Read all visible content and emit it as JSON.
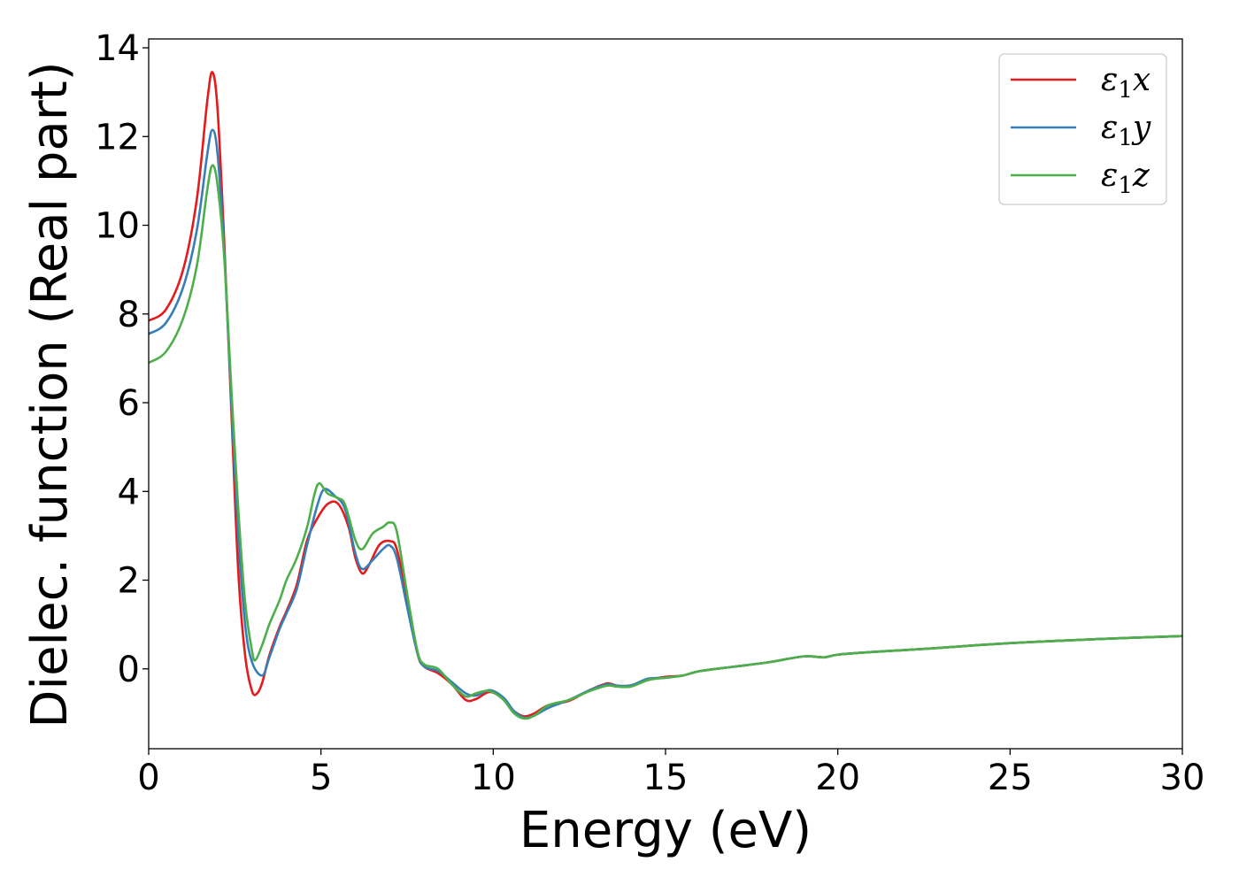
{
  "chart_data": {
    "type": "line",
    "xlabel": "Energy (eV)",
    "ylabel": "Dielec. function (Real part)",
    "xlim": [
      0,
      30
    ],
    "ylim": [
      -1.8,
      14.2
    ],
    "xticks": [
      0,
      5,
      10,
      15,
      20,
      25,
      30
    ],
    "yticks": [
      0,
      2,
      4,
      6,
      8,
      10,
      12,
      14
    ],
    "grid": false,
    "legend_position": "top-right",
    "series": [
      {
        "name": "ε1x",
        "legend": {
          "base": "ε",
          "sub": "1",
          "comp": "x"
        },
        "color": "#e41a1c",
        "points": [
          [
            0,
            7.85
          ],
          [
            0.5,
            8.1
          ],
          [
            1,
            9.0
          ],
          [
            1.4,
            10.6
          ],
          [
            1.7,
            12.8
          ],
          [
            1.85,
            13.45
          ],
          [
            2.0,
            12.6
          ],
          [
            2.2,
            9.5
          ],
          [
            2.4,
            5.8
          ],
          [
            2.6,
            2.2
          ],
          [
            2.8,
            0.3
          ],
          [
            3.0,
            -0.5
          ],
          [
            3.15,
            -0.55
          ],
          [
            3.3,
            -0.3
          ],
          [
            3.5,
            0.3
          ],
          [
            3.8,
            0.95
          ],
          [
            4.0,
            1.3
          ],
          [
            4.3,
            1.9
          ],
          [
            4.6,
            2.9
          ],
          [
            4.9,
            3.4
          ],
          [
            5.2,
            3.72
          ],
          [
            5.5,
            3.72
          ],
          [
            5.8,
            3.2
          ],
          [
            6.0,
            2.5
          ],
          [
            6.2,
            2.15
          ],
          [
            6.4,
            2.35
          ],
          [
            6.7,
            2.8
          ],
          [
            7.0,
            2.88
          ],
          [
            7.2,
            2.7
          ],
          [
            7.5,
            1.6
          ],
          [
            7.8,
            0.35
          ],
          [
            8.0,
            0.05
          ],
          [
            8.4,
            -0.1
          ],
          [
            8.8,
            -0.35
          ],
          [
            9.2,
            -0.7
          ],
          [
            9.5,
            -0.68
          ],
          [
            9.9,
            -0.52
          ],
          [
            10.3,
            -0.68
          ],
          [
            10.6,
            -0.95
          ],
          [
            10.9,
            -1.07
          ],
          [
            11.2,
            -1.0
          ],
          [
            11.6,
            -0.82
          ],
          [
            12.2,
            -0.72
          ],
          [
            12.8,
            -0.48
          ],
          [
            13.3,
            -0.33
          ],
          [
            13.6,
            -0.38
          ],
          [
            14.0,
            -0.38
          ],
          [
            14.5,
            -0.25
          ],
          [
            15.0,
            -0.18
          ],
          [
            15.5,
            -0.15
          ],
          [
            16.0,
            -0.05
          ],
          [
            17.0,
            0.05
          ],
          [
            18.0,
            0.15
          ],
          [
            19.0,
            0.28
          ],
          [
            19.6,
            0.26
          ],
          [
            20.0,
            0.32
          ],
          [
            21.0,
            0.38
          ],
          [
            22.5,
            0.45
          ],
          [
            25.0,
            0.58
          ],
          [
            27.5,
            0.67
          ],
          [
            30.0,
            0.74
          ]
        ]
      },
      {
        "name": "ε1y",
        "legend": {
          "base": "ε",
          "sub": "1",
          "comp": "y"
        },
        "color": "#377eb8",
        "points": [
          [
            0,
            7.55
          ],
          [
            0.5,
            7.8
          ],
          [
            1,
            8.6
          ],
          [
            1.4,
            9.9
          ],
          [
            1.7,
            11.6
          ],
          [
            1.85,
            12.15
          ],
          [
            2.0,
            11.6
          ],
          [
            2.2,
            9.3
          ],
          [
            2.4,
            6.0
          ],
          [
            2.6,
            3.0
          ],
          [
            2.8,
            1.0
          ],
          [
            3.0,
            0.15
          ],
          [
            3.3,
            -0.15
          ],
          [
            3.5,
            0.25
          ],
          [
            3.8,
            0.9
          ],
          [
            4.0,
            1.25
          ],
          [
            4.3,
            1.8
          ],
          [
            4.6,
            2.8
          ],
          [
            4.9,
            3.7
          ],
          [
            5.1,
            4.05
          ],
          [
            5.4,
            3.9
          ],
          [
            5.7,
            3.6
          ],
          [
            6.0,
            2.6
          ],
          [
            6.2,
            2.25
          ],
          [
            6.5,
            2.45
          ],
          [
            6.8,
            2.7
          ],
          [
            7.0,
            2.78
          ],
          [
            7.2,
            2.5
          ],
          [
            7.5,
            1.4
          ],
          [
            7.8,
            0.35
          ],
          [
            8.0,
            0.05
          ],
          [
            8.4,
            -0.05
          ],
          [
            8.8,
            -0.3
          ],
          [
            9.2,
            -0.55
          ],
          [
            9.5,
            -0.6
          ],
          [
            9.9,
            -0.48
          ],
          [
            10.3,
            -0.65
          ],
          [
            10.6,
            -0.95
          ],
          [
            10.9,
            -1.1
          ],
          [
            11.2,
            -1.05
          ],
          [
            11.6,
            -0.88
          ],
          [
            12.2,
            -0.7
          ],
          [
            12.8,
            -0.48
          ],
          [
            13.3,
            -0.35
          ],
          [
            13.6,
            -0.38
          ],
          [
            14.0,
            -0.37
          ],
          [
            14.5,
            -0.22
          ],
          [
            15.0,
            -0.2
          ],
          [
            15.5,
            -0.15
          ],
          [
            16.0,
            -0.05
          ],
          [
            17.0,
            0.05
          ],
          [
            18.0,
            0.15
          ],
          [
            19.0,
            0.28
          ],
          [
            19.6,
            0.26
          ],
          [
            20.0,
            0.32
          ],
          [
            21.0,
            0.38
          ],
          [
            22.5,
            0.45
          ],
          [
            25.0,
            0.58
          ],
          [
            27.5,
            0.67
          ],
          [
            30.0,
            0.74
          ]
        ]
      },
      {
        "name": "ε1z",
        "legend": {
          "base": "ε",
          "sub": "1",
          "comp": "z"
        },
        "color": "#4daf4a",
        "points": [
          [
            0,
            6.9
          ],
          [
            0.5,
            7.15
          ],
          [
            1,
            7.9
          ],
          [
            1.4,
            9.1
          ],
          [
            1.7,
            10.8
          ],
          [
            1.85,
            11.35
          ],
          [
            2.0,
            10.9
          ],
          [
            2.2,
            9.2
          ],
          [
            2.4,
            6.3
          ],
          [
            2.6,
            3.6
          ],
          [
            2.8,
            1.5
          ],
          [
            3.0,
            0.4
          ],
          [
            3.1,
            0.2
          ],
          [
            3.3,
            0.55
          ],
          [
            3.5,
            1.0
          ],
          [
            3.8,
            1.55
          ],
          [
            4.0,
            2.0
          ],
          [
            4.3,
            2.5
          ],
          [
            4.6,
            3.2
          ],
          [
            4.8,
            3.9
          ],
          [
            4.95,
            4.18
          ],
          [
            5.2,
            3.95
          ],
          [
            5.5,
            3.85
          ],
          [
            5.7,
            3.7
          ],
          [
            6.0,
            2.9
          ],
          [
            6.2,
            2.7
          ],
          [
            6.5,
            3.05
          ],
          [
            6.8,
            3.2
          ],
          [
            7.0,
            3.3
          ],
          [
            7.2,
            3.1
          ],
          [
            7.5,
            1.7
          ],
          [
            7.8,
            0.4
          ],
          [
            8.0,
            0.1
          ],
          [
            8.4,
            0.0
          ],
          [
            8.8,
            -0.35
          ],
          [
            9.2,
            -0.62
          ],
          [
            9.5,
            -0.55
          ],
          [
            9.9,
            -0.5
          ],
          [
            10.3,
            -0.7
          ],
          [
            10.6,
            -1.0
          ],
          [
            10.9,
            -1.12
          ],
          [
            11.2,
            -1.05
          ],
          [
            11.6,
            -0.82
          ],
          [
            12.2,
            -0.7
          ],
          [
            12.8,
            -0.5
          ],
          [
            13.3,
            -0.38
          ],
          [
            13.6,
            -0.4
          ],
          [
            14.0,
            -0.4
          ],
          [
            14.5,
            -0.25
          ],
          [
            15.0,
            -0.2
          ],
          [
            15.5,
            -0.15
          ],
          [
            16.0,
            -0.05
          ],
          [
            17.0,
            0.05
          ],
          [
            18.0,
            0.15
          ],
          [
            19.0,
            0.28
          ],
          [
            19.6,
            0.26
          ],
          [
            20.0,
            0.32
          ],
          [
            21.0,
            0.38
          ],
          [
            22.5,
            0.45
          ],
          [
            25.0,
            0.58
          ],
          [
            27.5,
            0.67
          ],
          [
            30.0,
            0.74
          ]
        ]
      }
    ]
  }
}
